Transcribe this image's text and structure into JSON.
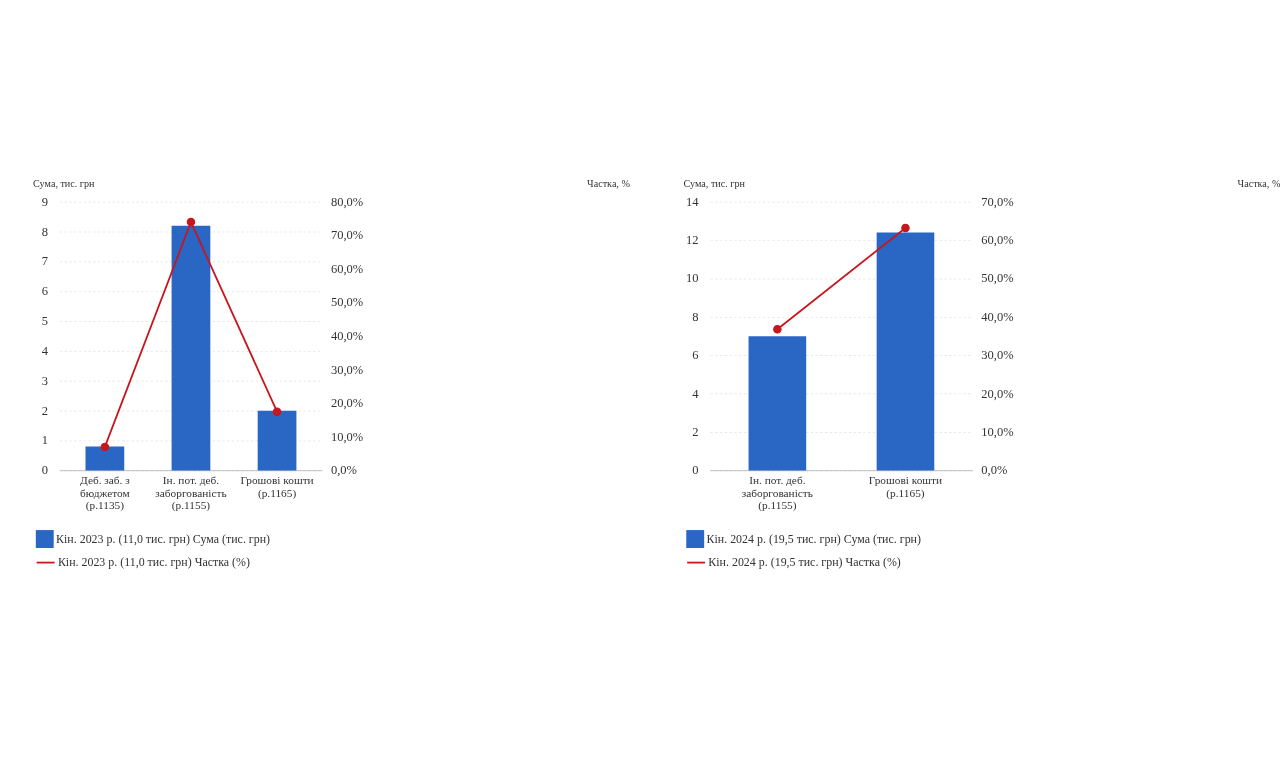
{
  "chart_data": [
    {
      "type": "bar",
      "categories": [
        "Деб. заб. з бюджетом (р.1135)",
        "Ін. пот. деб. заборгованість (р.1155)",
        "Грошові кошти (р.1165)"
      ],
      "ylabel": "Сума, тис. грн",
      "y2label": "Частка, %",
      "ylim": [
        0,
        9
      ],
      "yticks": [
        0,
        1,
        2,
        3,
        4,
        5,
        6,
        7,
        8,
        9
      ],
      "y2lim": [
        0,
        80
      ],
      "y2ticks": [
        {
          "value": 0,
          "label": "0,0%"
        },
        {
          "value": 10,
          "label": "10,0%"
        },
        {
          "value": 20,
          "label": "20,0%"
        },
        {
          "value": 30,
          "label": "30,0%"
        },
        {
          "value": 40,
          "label": "40,0%"
        },
        {
          "value": 50,
          "label": "50,0%"
        },
        {
          "value": 60,
          "label": "60,0%"
        },
        {
          "value": 70,
          "label": "70,0%"
        },
        {
          "value": 80,
          "label": "80,0%"
        }
      ],
      "grid": "y",
      "legend": "bottom",
      "series": [
        {
          "name": "Кін. 2023 р. (11,0 тис. грн) Сума (тис. грн)",
          "color": "#2a66c4",
          "values": [
            0.8,
            8.2,
            2.0
          ]
        },
        {
          "name": "Кін. 2023 р. (11,0 тис. грн) Частка (%)",
          "type": "line",
          "axis": "y2",
          "marker": "circle",
          "color": "#c8161d",
          "values": [
            7,
            74,
            17.5
          ]
        }
      ]
    },
    {
      "type": "bar",
      "categories": [
        "Ін. пот. деб. заборгованість (р.1155)",
        "Грошові кошти (р.1165)"
      ],
      "ylabel": "Сума, тис. грн",
      "y2label": "Частка, %",
      "ylim": [
        0,
        14
      ],
      "yticks": [
        0,
        2,
        4,
        6,
        8,
        10,
        12,
        14
      ],
      "y2lim": [
        0,
        70
      ],
      "y2ticks": [
        {
          "value": 0,
          "label": "0,0%"
        },
        {
          "value": 10,
          "label": "10,0%"
        },
        {
          "value": 20,
          "label": "20,0%"
        },
        {
          "value": 30,
          "label": "30,0%"
        },
        {
          "value": 40,
          "label": "40,0%"
        },
        {
          "value": 50,
          "label": "50,0%"
        },
        {
          "value": 60,
          "label": "60,0%"
        },
        {
          "value": 70,
          "label": "70,0%"
        }
      ],
      "grid": "y",
      "legend": "bottom",
      "series": [
        {
          "name": "Кін. 2024 р. (19,5 тис. грн) Сума (тис. грн)",
          "color": "#2a66c4",
          "values": [
            7.0,
            12.4
          ]
        },
        {
          "name": "Кін. 2024 р. (19,5 тис. грн) Частка (%)",
          "type": "line",
          "axis": "y2",
          "marker": "circle",
          "color": "#c8161d",
          "values": [
            36.8,
            63.2
          ]
        }
      ]
    }
  ]
}
